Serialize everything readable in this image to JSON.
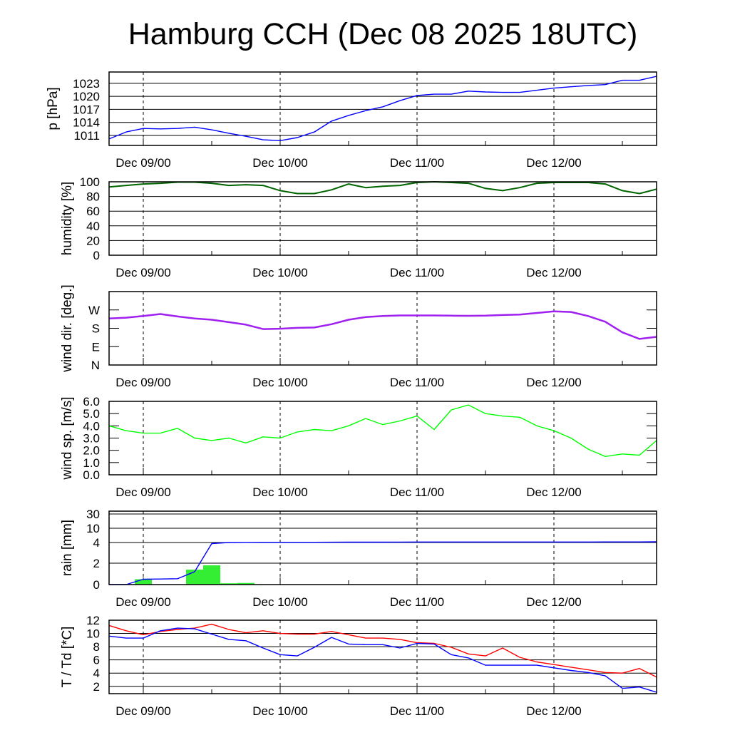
{
  "title": "Hamburg CCH (Dec 08 2025 18UTC)",
  "chart_data": {
    "type": "line",
    "title": "Hamburg CCH (Dec 08 2025 18UTC)",
    "x_unit": "hours since Dec 08 18UTC",
    "xlim": [
      0,
      96
    ],
    "x": [
      0,
      3,
      6,
      9,
      12,
      15,
      18,
      21,
      24,
      27,
      30,
      33,
      36,
      39,
      42,
      45,
      48,
      51,
      54,
      57,
      60,
      63,
      66,
      69,
      72,
      75,
      78,
      81,
      84,
      87,
      90,
      93,
      96
    ],
    "xticks": [
      {
        "hour": 6,
        "label": "Dec 09/00"
      },
      {
        "hour": 30,
        "label": "Dec 10/00"
      },
      {
        "hour": 54,
        "label": "Dec 11/00"
      },
      {
        "hour": 78,
        "label": "Dec 12/00"
      }
    ],
    "panels": [
      {
        "id": "pressure",
        "ylabel": "p [hPa]",
        "ylim": [
          1008.7,
          1025.6
        ],
        "grid": true,
        "yticks": [
          {
            "v": 1011,
            "label": "1011"
          },
          {
            "v": 1014,
            "label": "1014"
          },
          {
            "v": 1017,
            "label": "1017"
          },
          {
            "v": 1020,
            "label": "1020"
          },
          {
            "v": 1023,
            "label": "1023"
          }
        ],
        "series": [
          {
            "name": "pressure",
            "color": "#0000ff",
            "values": [
              1010.2,
              1011.8,
              1012.6,
              1012.5,
              1012.6,
              1012.9,
              1012.3,
              1011.5,
              1010.8,
              1010.0,
              1009.8,
              1010.5,
              1011.8,
              1014.3,
              1015.6,
              1016.7,
              1017.6,
              1019.0,
              1020.2,
              1020.5,
              1020.5,
              1021.2,
              1021.0,
              1020.9,
              1020.9,
              1021.4,
              1021.9,
              1022.2,
              1022.5,
              1022.7,
              1023.7,
              1023.7,
              1024.6
            ]
          }
        ]
      },
      {
        "id": "humidity",
        "ylabel": "humidity [%]",
        "ylim": [
          0,
          100
        ],
        "grid": true,
        "yticks": [
          {
            "v": 0,
            "label": "0"
          },
          {
            "v": 20,
            "label": "20"
          },
          {
            "v": 40,
            "label": "40"
          },
          {
            "v": 60,
            "label": "60"
          },
          {
            "v": 80,
            "label": "80"
          },
          {
            "v": 100,
            "label": "100"
          }
        ],
        "series": [
          {
            "name": "humidity",
            "color": "#006400",
            "values": [
              93,
              95,
              97,
              98,
              99.5,
              99.5,
              98,
              95,
              96,
              95,
              88,
              84,
              84,
              89,
              97,
              92,
              94,
              95,
              99,
              100,
              99,
              98,
              91,
              88,
              92,
              98,
              99,
              99,
              99,
              97,
              88,
              84,
              90
            ]
          }
        ]
      },
      {
        "id": "wind-direction",
        "ylabel": "wind dir. [deg.]",
        "ylim": [
          0,
          360
        ],
        "grid": false,
        "yticks": [
          {
            "v": 0,
            "label": "N"
          },
          {
            "v": 90,
            "label": "E"
          },
          {
            "v": 180,
            "label": "S"
          },
          {
            "v": 270,
            "label": "W"
          }
        ],
        "series": [
          {
            "name": "wind direction",
            "color": "#a020f0",
            "values": [
              228,
              232,
              240,
              250,
              238,
              228,
              222,
              210,
              198,
              176,
              178,
              182,
              184,
              200,
              222,
              235,
              240,
              243,
              243,
              243,
              242,
              241,
              242,
              245,
              247,
              255,
              263,
              260,
              240,
              212,
              160,
              128,
              138
            ]
          }
        ]
      },
      {
        "id": "wind-speed",
        "ylabel": "wind sp. [m/s]",
        "ylim": [
          0,
          6
        ],
        "grid": false,
        "yticks": [
          {
            "v": 0,
            "label": "0.0"
          },
          {
            "v": 1,
            "label": "1.0"
          },
          {
            "v": 2,
            "label": "2.0"
          },
          {
            "v": 3,
            "label": "3.0"
          },
          {
            "v": 4,
            "label": "4.0"
          },
          {
            "v": 5,
            "label": "5.0"
          },
          {
            "v": 6,
            "label": "6.0"
          }
        ],
        "series": [
          {
            "name": "wind speed",
            "color": "#00ff00",
            "values": [
              4.0,
              3.6,
              3.4,
              3.4,
              3.8,
              3.0,
              2.8,
              3.0,
              2.6,
              3.1,
              3.0,
              3.5,
              3.7,
              3.6,
              4.0,
              4.6,
              4.1,
              4.4,
              4.8,
              3.7,
              5.3,
              5.7,
              5.0,
              4.8,
              4.7,
              4.0,
              3.6,
              3.0,
              2.1,
              1.5,
              1.7,
              1.6,
              2.8
            ]
          }
        ]
      },
      {
        "id": "rain",
        "ylabel": "rain [mm]",
        "ylim": [
          0,
          40
        ],
        "grid": true,
        "scale_breaks": [
          0,
          2,
          4,
          10,
          30,
          40
        ],
        "yticks": [
          {
            "v": 0,
            "label": "0"
          },
          {
            "v": 2,
            "label": "2"
          },
          {
            "v": 4,
            "label": "4"
          },
          {
            "v": 10,
            "label": "10"
          },
          {
            "v": 30,
            "label": "30"
          }
        ],
        "bars": {
          "name": "3h precipitation",
          "color": "#33ee33",
          "items": [
            {
              "start": 4.5,
              "end": 7.5,
              "value": 0.5
            },
            {
              "start": 13.5,
              "end": 16.5,
              "value": 1.4
            },
            {
              "start": 16.5,
              "end": 19.5,
              "value": 1.8
            },
            {
              "start": 19.5,
              "end": 22.5,
              "value": 0.12
            },
            {
              "start": 22.5,
              "end": 25.5,
              "value": 0.15
            },
            {
              "start": 34.5,
              "end": 37.5,
              "value": 0.02
            },
            {
              "start": 55.5,
              "end": 58.5,
              "value": 0.02
            }
          ]
        },
        "series": [
          {
            "name": "accumulated rain",
            "color": "#0000ff",
            "values": [
              0,
              0,
              0.5,
              0.52,
              0.55,
              1.2,
              3.9,
              4.0,
              4.05,
              4.1,
              4.1,
              4.1,
              4.1,
              4.12,
              4.15,
              4.15,
              4.15,
              4.18,
              4.2,
              4.2,
              4.2,
              4.2,
              4.2,
              4.2,
              4.22,
              4.22,
              4.22,
              4.22,
              4.22,
              4.25,
              4.25,
              4.25,
              4.3
            ]
          }
        ]
      },
      {
        "id": "temperature",
        "ylabel": "T / Td [*C]",
        "ylim": [
          0.9,
          12
        ],
        "grid": true,
        "yticks": [
          {
            "v": 2,
            "label": "2"
          },
          {
            "v": 4,
            "label": "4"
          },
          {
            "v": 6,
            "label": "6"
          },
          {
            "v": 8,
            "label": "8"
          },
          {
            "v": 10,
            "label": "10"
          },
          {
            "v": 12,
            "label": "12"
          }
        ],
        "series": [
          {
            "name": "T",
            "color": "#ff0000",
            "values": [
              11.2,
              10.4,
              9.8,
              10.3,
              10.6,
              10.8,
              11.4,
              10.6,
              10.1,
              10.4,
              10.0,
              9.9,
              9.9,
              10.3,
              9.8,
              9.3,
              9.3,
              9.1,
              8.6,
              8.5,
              7.9,
              6.9,
              6.6,
              7.8,
              6.4,
              5.7,
              5.3,
              4.9,
              4.5,
              4.1,
              4.0,
              4.7,
              3.4
            ]
          },
          {
            "name": "Td",
            "color": "#0000ff",
            "values": [
              9.6,
              9.3,
              9.3,
              10.4,
              10.8,
              10.7,
              9.9,
              9.1,
              8.9,
              7.8,
              6.8,
              6.6,
              7.9,
              9.4,
              8.4,
              8.3,
              8.3,
              7.8,
              8.5,
              8.4,
              6.8,
              6.3,
              5.2,
              5.2,
              5.2,
              5.2,
              4.8,
              4.4,
              4.1,
              3.6,
              1.7,
              1.9,
              1.1
            ]
          }
        ]
      }
    ]
  }
}
